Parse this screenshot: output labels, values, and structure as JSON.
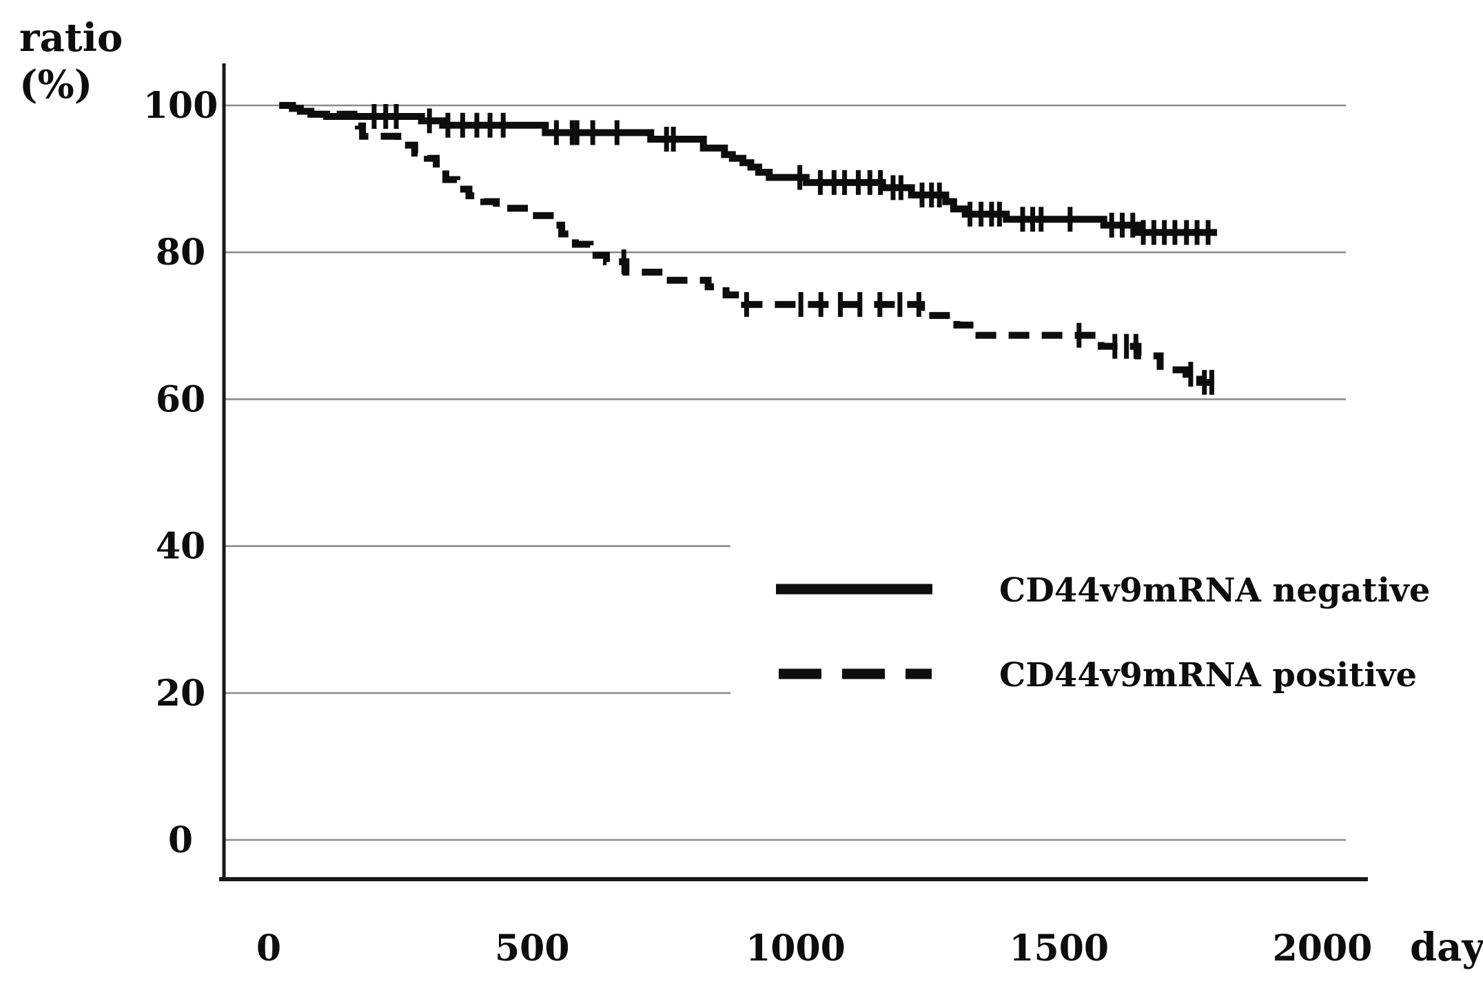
{
  "figure": {
    "y_axis_title_line1": "ratio",
    "y_axis_title_line2": "(%)"
  },
  "colors": {
    "background": "#ffffff",
    "curve": "#0d0d0d",
    "grid": "#8c8c8c",
    "axis": "#1a1a1a",
    "text": "#0d0d0d"
  },
  "chart_data": {
    "type": "line",
    "subtype": "kaplan-meier-step-survival",
    "title": "",
    "xlabel": "day",
    "ylabel": "ratio (%)",
    "xlim": [
      0,
      2100
    ],
    "ylim": [
      0,
      100
    ],
    "xticks": [
      0,
      500,
      1000,
      1500,
      2000
    ],
    "yticks": [
      100,
      80,
      60,
      40,
      20,
      0
    ],
    "grid": "horizontal",
    "gridlines_full_at_pct": [
      100,
      80,
      60,
      0
    ],
    "gridlines_truncated_at_pct": [
      40,
      20
    ],
    "legend_position": "center-right",
    "series": [
      {
        "name": "CD44v9mRNA negative",
        "style": "solid",
        "steps": [
          [
            20,
            100
          ],
          [
            45,
            99.6
          ],
          [
            60,
            99.2
          ],
          [
            80,
            98.8
          ],
          [
            110,
            98.5
          ],
          [
            290,
            97.9
          ],
          [
            330,
            97.3
          ],
          [
            525,
            96.3
          ],
          [
            725,
            95.4
          ],
          [
            825,
            94.2
          ],
          [
            865,
            93.3
          ],
          [
            880,
            92.8
          ],
          [
            900,
            92.2
          ],
          [
            915,
            91.6
          ],
          [
            930,
            90.9
          ],
          [
            950,
            90.2
          ],
          [
            1020,
            89.5
          ],
          [
            1165,
            88.8
          ],
          [
            1220,
            87.8
          ],
          [
            1285,
            86.9
          ],
          [
            1300,
            85.9
          ],
          [
            1322,
            85.2
          ],
          [
            1400,
            84.5
          ],
          [
            1585,
            83.7
          ],
          [
            1650,
            82.7
          ],
          [
            1800,
            82.7
          ]
        ],
        "censor_days": [
          200,
          222,
          242,
          305,
          340,
          368,
          395,
          420,
          445,
          546,
          576,
          585,
          615,
          661,
          755,
          768,
          1008,
          1047,
          1073,
          1093,
          1119,
          1141,
          1161,
          1185,
          1200,
          1240,
          1258,
          1273,
          1331,
          1352,
          1372,
          1387,
          1431,
          1450,
          1466,
          1521,
          1600,
          1620,
          1640,
          1660,
          1680,
          1700,
          1720,
          1742,
          1762,
          1783
        ]
      },
      {
        "name": "CD44v9mRNA positive",
        "style": "dashed",
        "steps": [
          [
            20,
            100
          ],
          [
            45,
            99.6
          ],
          [
            60,
            99.2
          ],
          [
            80,
            98.8
          ],
          [
            170,
            97.2
          ],
          [
            178,
            95.8
          ],
          [
            245,
            94.6
          ],
          [
            277,
            93.5
          ],
          [
            301,
            92.8
          ],
          [
            318,
            91.4
          ],
          [
            336,
            89.9
          ],
          [
            357,
            88.6
          ],
          [
            380,
            87.7
          ],
          [
            408,
            86.9
          ],
          [
            432,
            86.0
          ],
          [
            497,
            85.0
          ],
          [
            541,
            83.7
          ],
          [
            556,
            82.5
          ],
          [
            582,
            81.1
          ],
          [
            610,
            79.6
          ],
          [
            641,
            78.7
          ],
          [
            678,
            77.3
          ],
          [
            750,
            76.2
          ],
          [
            834,
            75.3
          ],
          [
            868,
            74.2
          ],
          [
            903,
            72.9
          ],
          [
            1239,
            71.4
          ],
          [
            1306,
            70.1
          ],
          [
            1348,
            68.7
          ],
          [
            1580,
            67.2
          ],
          [
            1650,
            65.9
          ],
          [
            1692,
            64.0
          ],
          [
            1741,
            63.4
          ],
          [
            1767,
            62.3
          ],
          [
            1800,
            62.1
          ]
        ],
        "censor_days": [
          674,
          907,
          1010,
          1048,
          1085,
          1122,
          1160,
          1198,
          1234,
          1538,
          1606,
          1628,
          1646,
          1750,
          1776,
          1790
        ]
      }
    ]
  }
}
